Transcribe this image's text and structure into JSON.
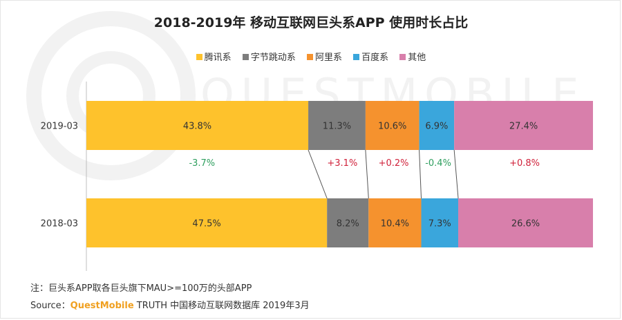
{
  "title": "2018-2019年 移动互联网巨头系APP 使用时长占比",
  "legend": [
    {
      "label": "腾讯系",
      "color": "#fec22c"
    },
    {
      "label": "字节跳动系",
      "color": "#7d7d7d"
    },
    {
      "label": "阿里系",
      "color": "#f5922e"
    },
    {
      "label": "百度系",
      "color": "#3aa6dc"
    },
    {
      "label": "其他",
      "color": "#d87fab"
    }
  ],
  "chart_data": {
    "type": "bar",
    "stacked": true,
    "orientation": "horizontal",
    "percent": true,
    "title": "2018-2019年 移动互联网巨头系APP 使用时长占比",
    "categories": [
      "2019-03",
      "2018-03"
    ],
    "series": [
      {
        "name": "腾讯系",
        "color": "#fec22c",
        "values": [
          43.8,
          47.5
        ],
        "labels": [
          "43.8%",
          "47.5%"
        ]
      },
      {
        "name": "字节跳动系",
        "color": "#7d7d7d",
        "values": [
          11.3,
          8.2
        ],
        "labels": [
          "11.3%",
          "8.2%"
        ]
      },
      {
        "name": "阿里系",
        "color": "#f5922e",
        "values": [
          10.6,
          10.4
        ],
        "labels": [
          "10.6%",
          "10.4%"
        ]
      },
      {
        "name": "百度系",
        "color": "#3aa6dc",
        "values": [
          6.9,
          7.3
        ],
        "labels": [
          "6.9%",
          "7.3%"
        ]
      },
      {
        "name": "其他",
        "color": "#d87fab",
        "values": [
          27.4,
          26.6
        ],
        "labels": [
          "27.4%",
          "26.6%"
        ]
      }
    ],
    "changes": [
      {
        "label": "-3.7%",
        "color": "#2e9e5e"
      },
      {
        "label": "+3.1%",
        "color": "#d0213a"
      },
      {
        "label": "+0.2%",
        "color": "#d0213a"
      },
      {
        "label": "-0.4%",
        "color": "#2e9e5e"
      },
      {
        "label": "+0.8%",
        "color": "#d0213a"
      }
    ],
    "label_color": "#333333",
    "axis_color": "#bfbfbf",
    "connector_color": "#555555"
  },
  "footer": {
    "note": "注：巨头系APP取各巨头旗下MAU>=100万的头部APP",
    "source_prefix": "Source：",
    "source_brand": "QuestMobile",
    "source_rest": " TRUTH 中国移动互联网数据库 2019年3月"
  },
  "watermark": "QUESTMOBILE"
}
